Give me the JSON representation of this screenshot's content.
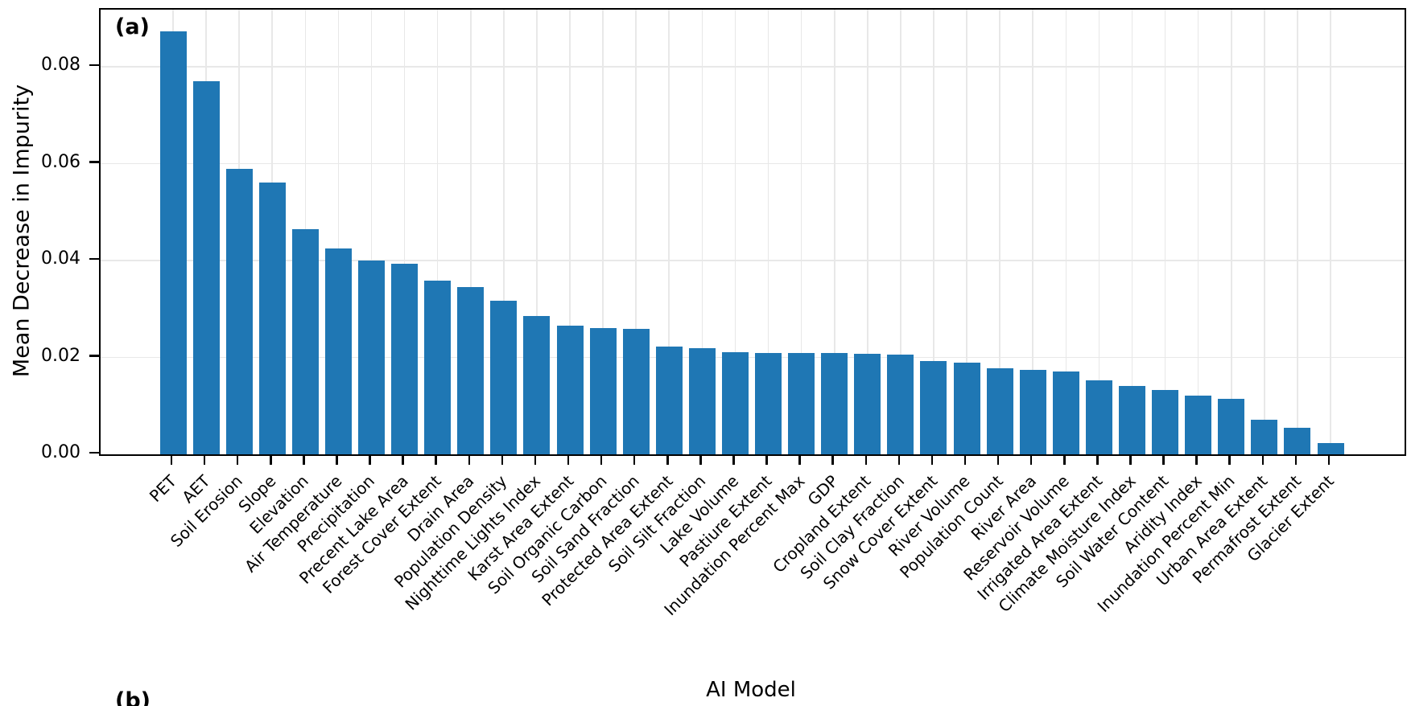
{
  "figure": {
    "panel_a_label": "(a)",
    "panel_b_label": "(b)"
  },
  "chart_data": {
    "type": "bar",
    "title": "",
    "xlabel": "AI Model",
    "ylabel": "Mean Decrease in Impurity",
    "bar_color": "#1f77b4",
    "grid": true,
    "legend": "none",
    "ylim": [
      0,
      0.0918
    ],
    "yticks": [
      0.0,
      0.02,
      0.04,
      0.06,
      0.08
    ],
    "ytick_labels": [
      "0.00",
      "0.02",
      "0.04",
      "0.06",
      "0.08"
    ],
    "categories": [
      "PET",
      "AET",
      "Soil Erosion",
      "Slope",
      "Elevation",
      "Air Temperature",
      "Precipitation",
      "Precent Lake Area",
      "Forest Cover Extent",
      "Drain Area",
      "Population Density",
      "Nighttime Lights Index",
      "Karst Area Extent",
      "Soil Organic Carbon",
      "Soil Sand Fraction",
      "Protected Area Extent",
      "Soil Silt Fraction",
      "Lake Volume",
      "Pastiure Extent",
      "Inundation Percent Max",
      "GDP",
      "Cropland Extent",
      "Soil Clay Fraction",
      "Snow Cover Extent",
      "River Volume",
      "Population Count",
      "River Area",
      "Reservoir Volume",
      "Irrigated Area Extent",
      "Climate Moisture Index",
      "Soil Water Content",
      "Aridity Index",
      "Inundation Percent Min",
      "Urban Area Extent",
      "Permafrost Extent",
      "Glacier Extent"
    ],
    "values": [
      0.0874,
      0.0771,
      0.059,
      0.0561,
      0.0465,
      0.0425,
      0.04,
      0.0393,
      0.0359,
      0.0345,
      0.0317,
      0.0286,
      0.0266,
      0.0261,
      0.0259,
      0.0222,
      0.0219,
      0.0211,
      0.021,
      0.0209,
      0.0209,
      0.0207,
      0.0206,
      0.0193,
      0.019,
      0.0178,
      0.0174,
      0.0171,
      0.0153,
      0.0141,
      0.0133,
      0.0121,
      0.0115,
      0.0071,
      0.0055,
      0.0023
    ]
  }
}
